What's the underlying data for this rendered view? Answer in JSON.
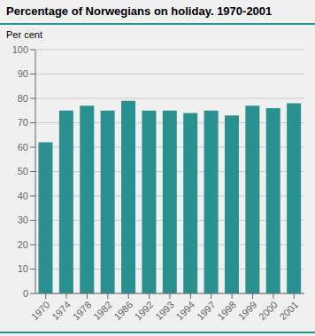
{
  "chart_data": {
    "type": "bar",
    "title": "Percentage of Norwegians on holiday. 1970-2001",
    "ylabel": "Per cent",
    "categories": [
      "1970",
      "1974",
      "1978",
      "1982",
      "1986",
      "1992",
      "1993",
      "1994",
      "1997",
      "1998",
      "1999",
      "2000",
      "2001"
    ],
    "values": [
      62,
      75,
      77,
      75,
      79,
      75,
      75,
      74,
      75,
      73,
      77,
      76,
      78
    ],
    "color": "#2a9090",
    "ylim": [
      0,
      100
    ],
    "yticks": [
      0,
      10,
      20,
      30,
      40,
      50,
      60,
      70,
      80,
      90,
      100
    ],
    "grid": true
  }
}
